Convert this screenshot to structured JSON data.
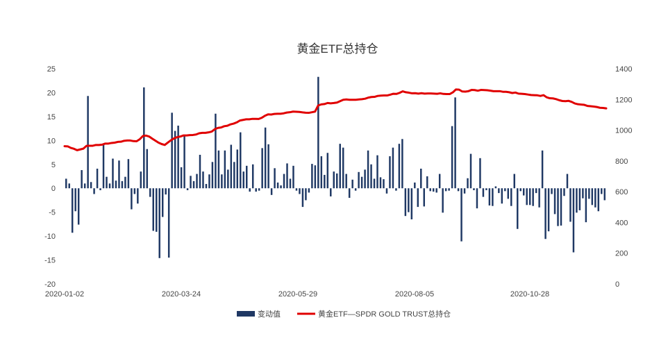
{
  "chart_data": {
    "type": "bar+line",
    "title": "黄金ETF总持仓",
    "legend": [
      {
        "name": "变动值",
        "color": "#1f3864",
        "kind": "bar"
      },
      {
        "name": "黄金ETF—SPDR GOLD TRUST总持仓",
        "color": "#e00000",
        "kind": "line"
      }
    ],
    "legend_position": "bottom-center",
    "x_tick_labels": [
      "2020-01-02",
      "2020-03-24",
      "2020-05-29",
      "2020-08-05",
      "2020-10-28"
    ],
    "y_left": {
      "min": -20,
      "max": 25,
      "ticks": [
        "25",
        "20",
        "15",
        "10",
        "5",
        "0",
        "-5",
        "-10",
        "-15",
        "-20"
      ]
    },
    "y_right": {
      "min": 0,
      "max": 1400,
      "ticks": [
        "1400",
        "1200",
        "1000",
        "800",
        "600",
        "400",
        "200",
        "0"
      ]
    },
    "grid": false,
    "series": [
      {
        "name": "变动值",
        "axis": "left",
        "values": [
          2.0,
          1.0,
          -9.3,
          -4.8,
          -7.6,
          3.8,
          1.0,
          19.3,
          1.3,
          -1.2,
          4.1,
          -0.4,
          9.1,
          2.4,
          1.0,
          6.2,
          1.6,
          5.8,
          1.5,
          2.4,
          6.1,
          -4.4,
          -1.2,
          -3.2,
          3.5,
          21.1,
          8.2,
          -1.8,
          -8.9,
          -9.1,
          -14.6,
          -6.0,
          -1.3,
          -14.5,
          15.8,
          12.0,
          13.1,
          4.4,
          11.2,
          -0.4,
          2.6,
          1.5,
          3.0,
          7.0,
          3.5,
          0.9,
          2.9,
          5.5,
          15.6,
          7.9,
          2.9,
          7.9,
          3.9,
          9.1,
          5.5,
          8.1,
          11.7,
          3.5,
          4.7,
          -0.7,
          5.0,
          -0.7,
          -0.5,
          8.4,
          12.7,
          9.2,
          -1.4,
          4.2,
          1.2,
          0.6,
          3.0,
          5.2,
          2.0,
          4.7,
          -0.5,
          -1.2,
          -3.9,
          -2.5,
          -0.9,
          5.1,
          4.8,
          23.3,
          6.7,
          2.8,
          7.4,
          -1.7,
          3.5,
          3.1,
          9.3,
          8.5,
          3.0,
          -2.0,
          1.8,
          -0.5,
          3.4,
          2.4,
          3.9,
          7.9,
          5.0,
          2.0,
          6.9,
          2.3,
          1.9,
          -1.1,
          6.7,
          8.5,
          -0.5,
          9.3,
          10.3,
          -5.8,
          -5.0,
          -6.5,
          1.2,
          -3.9,
          4.1,
          -3.8,
          2.5,
          -0.6,
          -0.7,
          -0.9,
          3.0,
          -5.1,
          -0.6,
          -0.5,
          13.0,
          19.0,
          -0.6,
          -11.1,
          -1.1,
          2.1,
          7.2,
          -0.4,
          -4.2,
          6.3,
          -1.8,
          -0.4,
          -3.6,
          -3.7,
          0.4,
          -1.0,
          -3.2,
          -0.6,
          -2.2,
          -3.7,
          3.0,
          -8.5,
          -0.6,
          -1.5,
          -3.5,
          -3.5,
          -3.7,
          -1.0,
          -4.0,
          7.9,
          -10.6,
          -9.0,
          -1.2,
          -5.4,
          -7.9,
          -7.8,
          -1.6,
          3.0,
          -7.0,
          -13.4,
          -5.1,
          -4.6,
          -2.1,
          -7.1,
          -2.2,
          -3.5,
          -4.0,
          -4.8,
          -1.2,
          -2.5
        ]
      },
      {
        "name": "黄金ETF—SPDR GOLD TRUST总持仓",
        "axis": "right",
        "values": [
          896,
          895,
          885,
          879,
          870,
          875,
          880,
          898,
          899,
          899,
          904,
          904,
          906,
          913,
          913,
          917,
          919,
          924,
          925,
          931,
          933,
          933,
          929,
          928,
          941,
          962,
          965,
          959,
          945,
          932,
          919,
          910,
          904,
          920,
          935,
          947,
          955,
          959,
          966,
          966,
          968,
          969,
          972,
          980,
          983,
          983,
          986,
          991,
          1007,
          1015,
          1018,
          1026,
          1029,
          1038,
          1043,
          1051,
          1063,
          1067,
          1071,
          1071,
          1074,
          1074,
          1073,
          1081,
          1094,
          1103,
          1102,
          1106,
          1107,
          1107,
          1110,
          1115,
          1117,
          1121,
          1120,
          1119,
          1116,
          1114,
          1113,
          1117,
          1121,
          1161,
          1168,
          1170,
          1177,
          1175,
          1177,
          1180,
          1189,
          1198,
          1200,
          1198,
          1198,
          1198,
          1200,
          1202,
          1205,
          1212,
          1216,
          1217,
          1223,
          1225,
          1226,
          1226,
          1231,
          1237,
          1236,
          1243,
          1253,
          1247,
          1244,
          1240,
          1241,
          1238,
          1241,
          1238,
          1239,
          1239,
          1238,
          1237,
          1240,
          1236,
          1235,
          1235,
          1246,
          1265,
          1264,
          1252,
          1251,
          1254,
          1262,
          1261,
          1257,
          1262,
          1261,
          1260,
          1257,
          1254,
          1254,
          1254,
          1250,
          1250,
          1247,
          1242,
          1245,
          1238,
          1237,
          1235,
          1232,
          1229,
          1228,
          1227,
          1223,
          1228,
          1214,
          1208,
          1207,
          1202,
          1195,
          1190,
          1189,
          1191,
          1184,
          1174,
          1169,
          1167,
          1165,
          1158,
          1156,
          1154,
          1151,
          1146,
          1145,
          1142
        ]
      }
    ]
  }
}
